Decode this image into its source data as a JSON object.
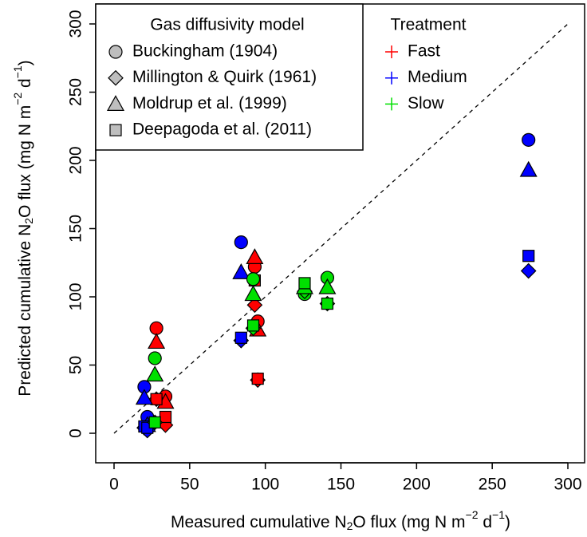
{
  "chart_data": {
    "type": "scatter",
    "x_label": [
      "Measured cumulative N",
      "2",
      "O flux (mg N m",
      "−2",
      " d",
      "−1",
      ")"
    ],
    "y_label": [
      "Predicted cumulative N",
      "2",
      "O flux (mg N m",
      "−2",
      " d",
      "−1",
      ")"
    ],
    "xlim": [
      0,
      300
    ],
    "ylim": [
      0,
      300
    ],
    "xticks": [
      0,
      50,
      100,
      150,
      200,
      250,
      300
    ],
    "yticks": [
      0,
      50,
      100,
      150,
      200,
      250,
      300
    ],
    "model_legend_title": "Gas diffusivity model",
    "treatment_legend_title": "Treatment",
    "models": [
      {
        "name": "Buckingham (1904)",
        "shape": "circle"
      },
      {
        "name": "Millington & Quirk (1961)",
        "shape": "diamond"
      },
      {
        "name": "Moldrup et al. (1999)",
        "shape": "triangle"
      },
      {
        "name": "Deepagoda et al. (2011)",
        "shape": "square"
      }
    ],
    "series": [
      {
        "name": "Fast",
        "color": "#ff0000",
        "x": [
          28,
          34,
          93,
          95
        ],
        "values": [
          [
            77,
            27,
            122,
            82
          ],
          [
            25,
            6,
            94,
            39
          ],
          [
            67,
            23,
            129,
            76
          ],
          [
            25,
            12,
            112,
            40
          ]
        ]
      },
      {
        "name": "Medium",
        "color": "#0000ff",
        "x": [
          20,
          22,
          84,
          274
        ],
        "values": [
          [
            34,
            12,
            140,
            215
          ],
          [
            4,
            2,
            68,
            119
          ],
          [
            26,
            6,
            118,
            193
          ],
          [
            5,
            4,
            70,
            130
          ]
        ]
      },
      {
        "name": "Slow",
        "color": "#00e000",
        "x": [
          27,
          92,
          126,
          141
        ],
        "values": [
          [
            55,
            113,
            102,
            114
          ],
          [
            8,
            77,
            104,
            95
          ],
          [
            43,
            102,
            107,
            107
          ],
          [
            8,
            79,
            110,
            95
          ]
        ]
      }
    ],
    "identity_line": true
  }
}
